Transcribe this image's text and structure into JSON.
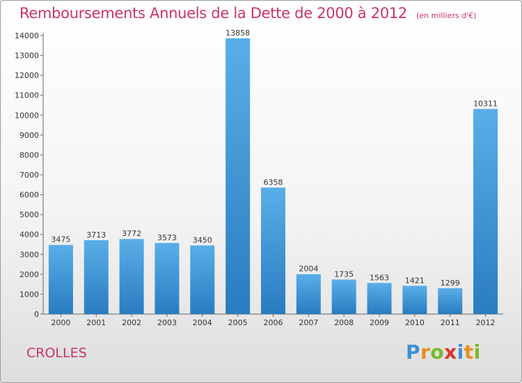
{
  "chart_data": {
    "type": "bar",
    "title": "Remboursements Annuels de la Dette de 2000 à 2012",
    "subtitle": "(en milliers d'€)",
    "categories": [
      "2000",
      "2001",
      "2002",
      "2003",
      "2004",
      "2005",
      "2006",
      "2007",
      "2008",
      "2009",
      "2010",
      "2011",
      "2012"
    ],
    "values": [
      3475,
      3713,
      3772,
      3573,
      3450,
      13858,
      6358,
      2004,
      1735,
      1563,
      1421,
      1299,
      10311
    ],
    "ylim": [
      0,
      14000
    ],
    "yticks": [
      0,
      1000,
      2000,
      3000,
      4000,
      5000,
      6000,
      7000,
      8000,
      9000,
      10000,
      11000,
      12000,
      13000,
      14000
    ],
    "grid": false,
    "bar_color_top": "#5aaee8",
    "bar_color_bottom": "#2a7cc0"
  },
  "commune": "CROLLES",
  "logo": {
    "letters": [
      "P",
      "r",
      "o",
      "x",
      "i",
      "t",
      "i"
    ],
    "colors": [
      "#3b8fd6",
      "#e98d1a",
      "#7ab929",
      "#d9342b",
      "#3b8fd6",
      "#e98d1a",
      "#7ab929"
    ]
  },
  "title_color": "#cc3366"
}
